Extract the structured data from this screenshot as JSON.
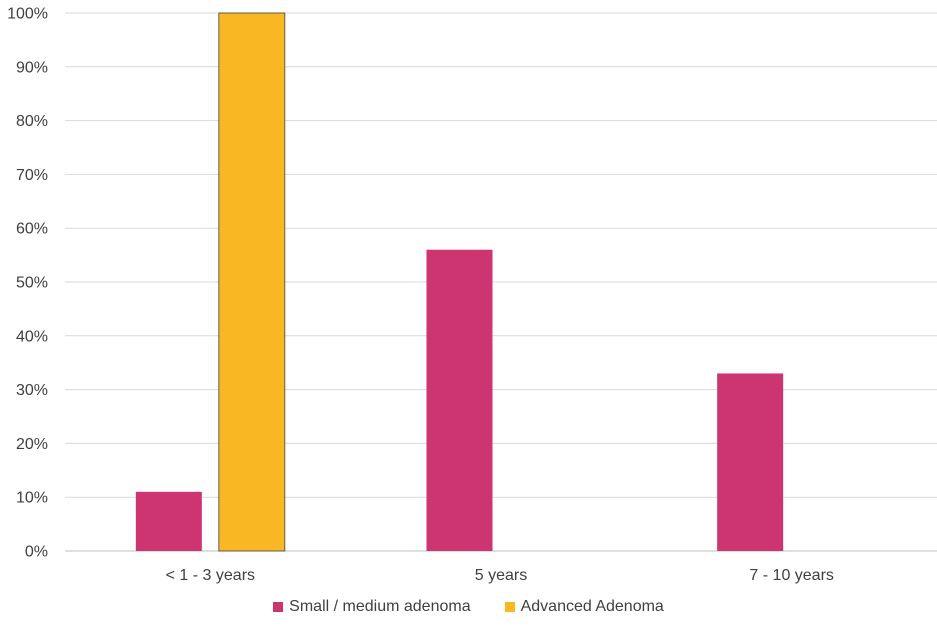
{
  "chart_data": {
    "type": "bar",
    "categories": [
      "< 1 - 3 years",
      "5 years",
      "7 - 10 years"
    ],
    "series": [
      {
        "name": "Small / medium adenoma",
        "values": [
          11,
          56,
          33
        ],
        "color": "#cc3570"
      },
      {
        "name": "Advanced Adenoma",
        "values": [
          100,
          null,
          null
        ],
        "color": "#f9b823"
      }
    ],
    "y_ticks": [
      "0%",
      "10%",
      "20%",
      "30%",
      "40%",
      "50%",
      "60%",
      "70%",
      "80%",
      "90%",
      "100%"
    ],
    "ylim": [
      0,
      100
    ],
    "grid": true,
    "legend_position": "bottom",
    "title": "",
    "xlabel": "",
    "ylabel": ""
  }
}
